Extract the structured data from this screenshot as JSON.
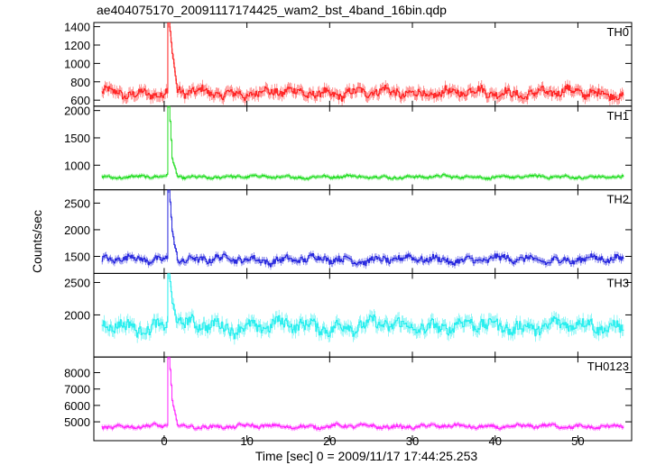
{
  "chart_data": {
    "type": "line",
    "title": "ae404075170_20091117174425_wam2_bst_4band_16bin.qdp",
    "xlabel": "Time [sec] 0 = 2009/11/17 17:44:25.253",
    "ylabel": "Counts/sec",
    "xlim": [
      -8.5,
      56.5
    ],
    "x_ticks": [
      0,
      10,
      20,
      30,
      40,
      50
    ],
    "x_tick_labels": [
      "0",
      "10",
      "20",
      "30",
      "40",
      "50"
    ],
    "x_start": -7.5,
    "x_end": 55.5,
    "burst_time": 0.45,
    "panels": [
      {
        "label": "TH0",
        "color": "#ff2020",
        "ylim": [
          535,
          1445
        ],
        "y_ticks": [
          600,
          800,
          1000,
          1200,
          1400
        ],
        "y_tick_labels": [
          "600",
          "800",
          "1000",
          "1200",
          "1400"
        ],
        "baseline": 680,
        "noise": 55,
        "peak": 1445,
        "secondary_peak": 1110,
        "error": 55
      },
      {
        "label": "TH1",
        "color": "#22dd22",
        "ylim": [
          550,
          2080
        ],
        "y_ticks": [
          1000,
          1500,
          2000
        ],
        "y_tick_labels": [
          "1000",
          "1500",
          "2000"
        ],
        "baseline": 785,
        "noise": 28,
        "peak": 2080,
        "secondary_peak": 1120,
        "error": 35
      },
      {
        "label": "TH2",
        "color": "#2222dd",
        "ylim": [
          1180,
          2750
        ],
        "y_ticks": [
          1500,
          2000,
          2500
        ],
        "y_tick_labels": [
          "1500",
          "2000",
          "2500"
        ],
        "baseline": 1440,
        "noise": 75,
        "peak": 2750,
        "secondary_peak": 1950,
        "error": 60
      },
      {
        "label": "TH3",
        "color": "#22eeee",
        "ylim": [
          1350,
          2640
        ],
        "y_ticks": [
          2000,
          2500
        ],
        "y_tick_labels": [
          "2000",
          "2500"
        ],
        "baseline": 1830,
        "noise": 110,
        "peak": 2640,
        "secondary_peak": 2200,
        "error": 90
      },
      {
        "label": "TH0123",
        "color": "#ff22ff",
        "ylim": [
          3850,
          8950
        ],
        "y_ticks": [
          5000,
          6000,
          7000,
          8000
        ],
        "y_tick_labels": [
          "5000",
          "6000",
          "7000",
          "8000"
        ],
        "baseline": 4720,
        "noise": 120,
        "peak": 8950,
        "secondary_peak": 6300,
        "error": 130
      }
    ]
  }
}
